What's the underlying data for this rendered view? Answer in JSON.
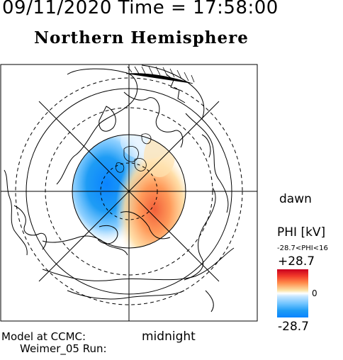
{
  "header": {
    "datetime": "09/11/2020 Time = 17:58:00",
    "title": "Northern Hemisphere"
  },
  "labels": {
    "dawn": "dawn",
    "midnight": "midnight",
    "model_line1": "Model at CCMC:",
    "model_line2": "Weimer_05 Run:"
  },
  "colorbar": {
    "title": "PHI [kV]",
    "range_text": "-28.7<PHI<16",
    "max": "+28.7",
    "zero": "0",
    "min": "-28.7",
    "colors": [
      "#c8001e",
      "#ff8a4a",
      "#ffffff",
      "#6cc2ff",
      "#0a84ff"
    ]
  },
  "potential": {
    "min_kv": -28.7,
    "max_kv": 16
  }
}
